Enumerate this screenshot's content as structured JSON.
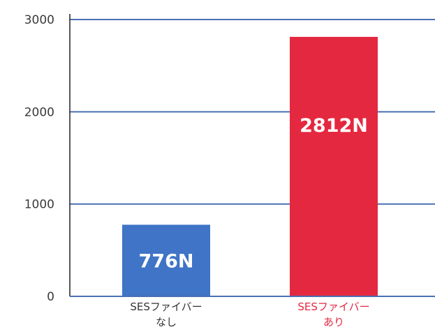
{
  "chart_data": {
    "type": "bar",
    "categories": [
      [
        "SESファイバー",
        "なし"
      ],
      [
        "SESファイバー",
        "あり"
      ]
    ],
    "values": [
      776,
      2812
    ],
    "data_labels": [
      "776N",
      "2812N"
    ],
    "colors": [
      "#3f74c6",
      "#e42840"
    ],
    "category_label_colors": [
      "#333333",
      "#e42840"
    ],
    "ylim": [
      0,
      3000
    ],
    "yticks": [
      0,
      1000,
      2000,
      3000
    ],
    "title": "",
    "xlabel": "",
    "ylabel": "",
    "grid": true,
    "grid_color": "#4a6fb3"
  }
}
